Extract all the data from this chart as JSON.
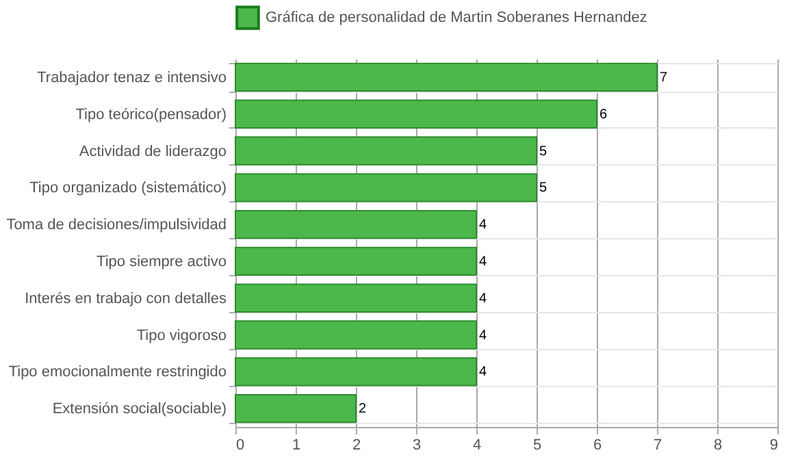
{
  "chart_data": {
    "type": "bar",
    "orientation": "horizontal",
    "categories": [
      "Trabajador tenaz e intensivo",
      "Tipo teórico(pensador)",
      "Actividad de liderazgo",
      "Tipo organizado (sistemático)",
      "Toma de decisiones/impulsividad",
      "Tipo siempre activo",
      "Interés en trabajo con detalles",
      "Tipo vigoroso",
      "Tipo emocionalmente restringido",
      "Extensión social(sociable)"
    ],
    "series": [
      {
        "name": "Gráfica de personalidad de Martin Soberanes Hernandez",
        "color": "#4cb84c",
        "values": [
          7,
          6,
          5,
          5,
          4,
          4,
          4,
          4,
          4,
          2
        ]
      }
    ],
    "xlim": [
      0,
      9
    ],
    "xticks": [
      0,
      1,
      2,
      3,
      4,
      5,
      6,
      7,
      8,
      9
    ],
    "grid": true,
    "legend": "top",
    "data_labels": true
  }
}
